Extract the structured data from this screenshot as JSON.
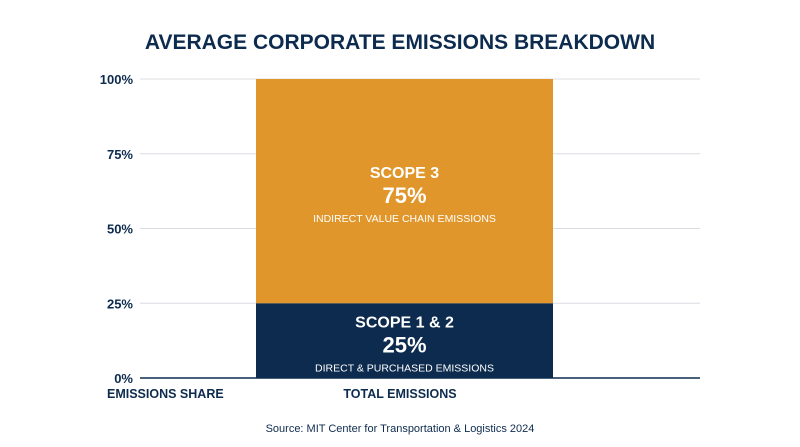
{
  "chart_data": {
    "type": "bar",
    "stacked": true,
    "title": "AVERAGE CORPORATE EMISSIONS BREAKDOWN",
    "categories": [
      "TOTAL EMISSIONS"
    ],
    "ylabel": "EMISSIONS SHARE",
    "ylim": [
      0,
      100
    ],
    "yticks": [
      0,
      25,
      50,
      75,
      100
    ],
    "ytick_labels": [
      "0%",
      "25%",
      "50%",
      "75%",
      "100%"
    ],
    "grid": true,
    "series": [
      {
        "name": "SCOPE 1 & 2",
        "values": [
          25
        ],
        "value_label": "25%",
        "description": "DIRECT & PURCHASED EMISSIONS",
        "color": "#0d2b4e"
      },
      {
        "name": "SCOPE 3",
        "values": [
          75
        ],
        "value_label": "75%",
        "description": "INDIRECT VALUE CHAIN EMISSIONS",
        "color": "#e0962a"
      }
    ],
    "source": "Source: MIT Center for Transportation & Logistics 2024"
  }
}
